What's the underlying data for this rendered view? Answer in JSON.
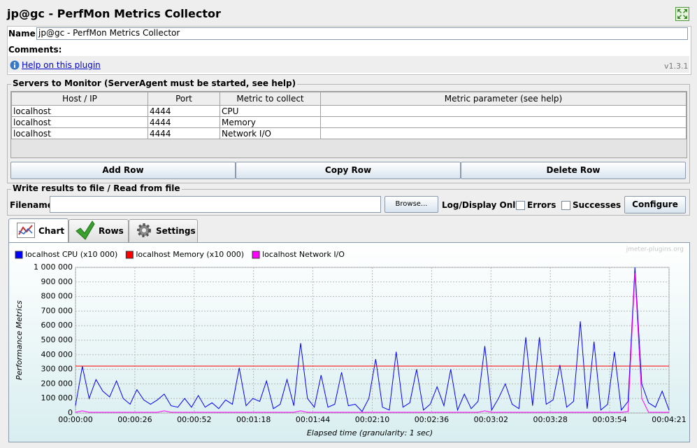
{
  "header": {
    "title": "jp@gc - PerfMon Metrics Collector"
  },
  "form": {
    "name_label": "Name:",
    "name_value": "jp@gc - PerfMon Metrics Collector",
    "comments_label": "Comments:",
    "help_link": "Help on this plugin",
    "version": "v1.3.1"
  },
  "servers": {
    "title": "Servers to Monitor (ServerAgent must be started, see help)",
    "columns": [
      "Host / IP",
      "Port",
      "Metric to collect",
      "Metric parameter (see help)"
    ],
    "rows": [
      [
        "localhost",
        "4444",
        "CPU",
        ""
      ],
      [
        "localhost",
        "4444",
        "Memory",
        ""
      ],
      [
        "localhost",
        "4444",
        "Network I/O",
        ""
      ]
    ],
    "buttons": [
      "Add Row",
      "Copy Row",
      "Delete Row"
    ]
  },
  "file": {
    "title": "Write results to file / Read from file",
    "filename_label": "Filename",
    "browse": "Browse...",
    "log_label": "Log/Display Only:",
    "errors": "Errors",
    "successes": "Successes",
    "configure": "Configure"
  },
  "tabs": [
    "Chart",
    "Rows",
    "Settings"
  ],
  "chart_data": {
    "type": "line",
    "watermark": "jmeter-plugins.org",
    "xlabel": "Elapsed time (granularity: 1 sec)",
    "ylabel": "Performance Metrics",
    "x": [
      0,
      3,
      6,
      9,
      12,
      15,
      18,
      21,
      24,
      27,
      30,
      33,
      36,
      39,
      42,
      45,
      48,
      51,
      54,
      57,
      60,
      63,
      66,
      69,
      72,
      75,
      78,
      81,
      84,
      87,
      90,
      93,
      96,
      99,
      102,
      105,
      108,
      111,
      114,
      117,
      120,
      123,
      126,
      129,
      132,
      135,
      138,
      141,
      144,
      147,
      150,
      153,
      156,
      159,
      162,
      165,
      168,
      171,
      174,
      177,
      180,
      183,
      186,
      189,
      192,
      195,
      198,
      201,
      204,
      207,
      210,
      213,
      216,
      219,
      222,
      225,
      228,
      231,
      234,
      237,
      240,
      243,
      246,
      249,
      252,
      255,
      258,
      261
    ],
    "xlim": [
      0,
      261
    ],
    "xticks": [
      {
        "value": 0,
        "label": "00:00:00"
      },
      {
        "value": 26.1,
        "label": "00:00:26"
      },
      {
        "value": 52.2,
        "label": "00:00:52"
      },
      {
        "value": 78.3,
        "label": "00:01:18"
      },
      {
        "value": 104.4,
        "label": "00:01:44"
      },
      {
        "value": 130.5,
        "label": "00:02:10"
      },
      {
        "value": 156.6,
        "label": "00:02:36"
      },
      {
        "value": 182.7,
        "label": "00:03:02"
      },
      {
        "value": 208.8,
        "label": "00:03:28"
      },
      {
        "value": 234.9,
        "label": "00:03:54"
      },
      {
        "value": 261,
        "label": "00:04:21"
      }
    ],
    "ylim": [
      0,
      1000000
    ],
    "yticks": [
      0,
      {
        "value": 100000,
        "label": "100 000"
      },
      {
        "value": 200000,
        "label": "200 000"
      },
      {
        "value": 300000,
        "label": "300 000"
      },
      {
        "value": 400000,
        "label": "400 000"
      },
      {
        "value": 500000,
        "label": "500 000"
      },
      {
        "value": 600000,
        "label": "600 000"
      },
      {
        "value": 700000,
        "label": "700 000"
      },
      {
        "value": 800000,
        "label": "800 000"
      },
      {
        "value": 900000,
        "label": "900 000"
      },
      {
        "value": 1000000,
        "label": "1 000 000"
      }
    ],
    "grid": true,
    "series": [
      {
        "name": "localhost CPU (x10 000)",
        "color": "#0000ff",
        "values": [
          50000,
          320000,
          100000,
          230000,
          150000,
          110000,
          220000,
          100000,
          60000,
          160000,
          90000,
          60000,
          90000,
          130000,
          50000,
          40000,
          100000,
          40000,
          120000,
          40000,
          70000,
          30000,
          90000,
          60000,
          310000,
          50000,
          100000,
          80000,
          220000,
          30000,
          60000,
          230000,
          50000,
          480000,
          100000,
          40000,
          260000,
          40000,
          60000,
          280000,
          50000,
          60000,
          10000,
          100000,
          370000,
          40000,
          20000,
          420000,
          40000,
          70000,
          300000,
          20000,
          60000,
          180000,
          50000,
          300000,
          20000,
          130000,
          30000,
          80000,
          460000,
          20000,
          100000,
          200000,
          60000,
          30000,
          520000,
          50000,
          520000,
          60000,
          90000,
          330000,
          40000,
          80000,
          630000,
          30000,
          490000,
          20000,
          60000,
          420000,
          20000,
          80000,
          1000000,
          200000,
          70000,
          40000,
          150000,
          20000
        ]
      },
      {
        "name": "localhost Memory (x10 000)",
        "color": "#ff0000",
        "values": [
          322000,
          322000,
          322000,
          322000,
          322000,
          322000,
          322000,
          322000,
          322000,
          322000,
          322000,
          322000,
          322000,
          322000,
          322000,
          322000,
          322000,
          322000,
          322000,
          322000,
          322000,
          322000,
          322000,
          322000,
          322000,
          322000,
          322000,
          322000,
          322000,
          322000,
          322000,
          322000,
          322000,
          322000,
          322000,
          322000,
          322000,
          322000,
          322000,
          322000,
          322000,
          322000,
          322000,
          322000,
          322000,
          322000,
          322000,
          322000,
          322000,
          322000,
          322000,
          322000,
          322000,
          322000,
          322000,
          322000,
          322000,
          322000,
          322000,
          322000,
          322000,
          322000,
          322000,
          322000,
          322000,
          322000,
          322000,
          322000,
          322000,
          322000,
          322000,
          322000,
          322000,
          322000,
          322000,
          322000,
          322000,
          322000,
          322000,
          322000,
          322000,
          322000,
          322000,
          322000,
          322000,
          322000,
          322000,
          322000
        ]
      },
      {
        "name": "localhost Network I/O",
        "color": "#ff00ff",
        "values": [
          5000,
          15000,
          5000,
          5000,
          5000,
          5000,
          5000,
          5000,
          5000,
          5000,
          5000,
          5000,
          5000,
          15000,
          5000,
          5000,
          5000,
          5000,
          5000,
          5000,
          5000,
          5000,
          5000,
          5000,
          5000,
          5000,
          5000,
          5000,
          5000,
          5000,
          5000,
          5000,
          5000,
          15000,
          5000,
          5000,
          5000,
          5000,
          5000,
          5000,
          5000,
          5000,
          5000,
          5000,
          5000,
          5000,
          5000,
          5000,
          5000,
          5000,
          5000,
          5000,
          5000,
          5000,
          5000,
          5000,
          5000,
          5000,
          5000,
          5000,
          15000,
          5000,
          5000,
          5000,
          5000,
          5000,
          5000,
          5000,
          5000,
          5000,
          5000,
          5000,
          5000,
          5000,
          5000,
          5000,
          5000,
          5000,
          5000,
          5000,
          5000,
          10000,
          960000,
          100000,
          5000,
          5000,
          5000,
          5000
        ]
      }
    ]
  }
}
